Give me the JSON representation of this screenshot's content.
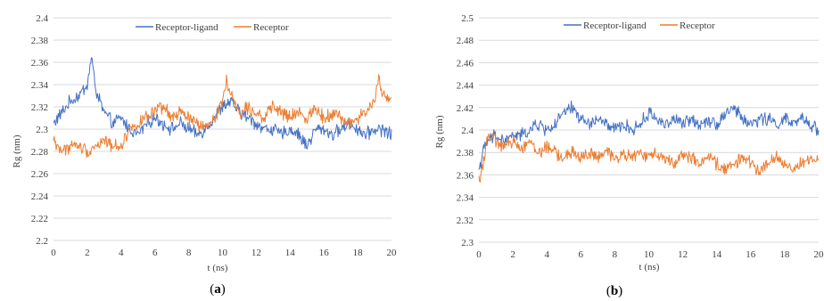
{
  "chart_data": [
    {
      "type": "line",
      "panel_label_open": "(",
      "panel_label_letter": "a",
      "panel_label_close": ")",
      "xlabel": "t (ns)",
      "ylabel": "Rg (nm)",
      "xlim": [
        0,
        20
      ],
      "ylim": [
        2.2,
        2.4
      ],
      "x_ticks": [
        "0",
        "2",
        "4",
        "6",
        "8",
        "10",
        "12",
        "14",
        "16",
        "18",
        "20"
      ],
      "y_ticks": [
        "2.2",
        "2.22",
        "2.24",
        "2.26",
        "2.28",
        "2.3",
        "2.32",
        "2.34",
        "2.36",
        "2.38",
        "2.4"
      ],
      "grid": "horizontal",
      "legend_position": "top-center",
      "series": [
        {
          "name": "Receptor-ligand",
          "color": "#4472C4",
          "x": [
            0,
            0.5,
            1,
            1.5,
            2,
            2.25,
            2.5,
            3,
            3.5,
            4,
            4.5,
            5,
            5.5,
            6,
            6.5,
            7,
            7.5,
            8,
            8.5,
            9,
            9.5,
            10,
            10.5,
            11,
            11.5,
            12,
            12.5,
            13,
            13.5,
            14,
            14.5,
            15,
            15.5,
            16,
            16.5,
            17,
            17.5,
            18,
            18.5,
            19,
            19.5,
            20
          ],
          "y": [
            2.305,
            2.315,
            2.325,
            2.33,
            2.34,
            2.365,
            2.335,
            2.315,
            2.305,
            2.31,
            2.3,
            2.295,
            2.305,
            2.31,
            2.305,
            2.3,
            2.305,
            2.3,
            2.295,
            2.3,
            2.31,
            2.32,
            2.325,
            2.315,
            2.31,
            2.305,
            2.3,
            2.3,
            2.295,
            2.3,
            2.295,
            2.285,
            2.3,
            2.3,
            2.295,
            2.3,
            2.305,
            2.3,
            2.295,
            2.3,
            2.3,
            2.295
          ]
        },
        {
          "name": "Receptor",
          "color": "#ED7D31",
          "x": [
            0,
            0.5,
            1,
            1.5,
            2,
            2.5,
            3,
            3.5,
            4,
            4.5,
            5,
            5.5,
            6,
            6.5,
            7,
            7.5,
            8,
            8.5,
            9,
            9.5,
            10,
            10.25,
            10.5,
            11,
            11.5,
            12,
            12.5,
            13,
            13.5,
            14,
            14.5,
            15,
            15.5,
            16,
            16.5,
            17,
            17.5,
            18,
            18.5,
            19,
            19.25,
            19.5,
            20
          ],
          "y": [
            2.29,
            2.28,
            2.285,
            2.285,
            2.28,
            2.285,
            2.29,
            2.285,
            2.285,
            2.3,
            2.305,
            2.31,
            2.315,
            2.32,
            2.31,
            2.315,
            2.31,
            2.305,
            2.3,
            2.31,
            2.325,
            2.345,
            2.33,
            2.315,
            2.32,
            2.315,
            2.31,
            2.32,
            2.315,
            2.31,
            2.315,
            2.31,
            2.32,
            2.31,
            2.315,
            2.31,
            2.305,
            2.31,
            2.315,
            2.325,
            2.345,
            2.33,
            2.325
          ]
        }
      ]
    },
    {
      "type": "line",
      "panel_label_open": "(",
      "panel_label_letter": "b",
      "panel_label_close": ")",
      "xlabel": "t (ns)",
      "ylabel": "Rg (nm)",
      "xlim": [
        0,
        20
      ],
      "ylim": [
        2.3,
        2.5
      ],
      "x_ticks": [
        "0",
        "2",
        "4",
        "6",
        "8",
        "10",
        "12",
        "14",
        "16",
        "18",
        "20"
      ],
      "y_ticks": [
        "2.3",
        "2.32",
        "2.34",
        "2.36",
        "2.38",
        "2.4",
        "2.42",
        "2.44",
        "2.46",
        "2.48",
        "2.5"
      ],
      "grid": "horizontal",
      "legend_position": "top-center",
      "series": [
        {
          "name": "Receptor-ligand",
          "color": "#4472C4",
          "x": [
            0,
            0.25,
            0.5,
            1,
            1.5,
            2,
            2.5,
            3,
            3.5,
            4,
            4.5,
            5,
            5.5,
            6,
            6.5,
            7,
            7.5,
            8,
            8.5,
            9,
            9.5,
            10,
            10.5,
            11,
            11.5,
            12,
            12.5,
            13,
            13.5,
            14,
            14.5,
            15,
            15.5,
            16,
            16.5,
            17,
            17.5,
            18,
            18.5,
            19,
            19.5,
            20
          ],
          "y": [
            2.365,
            2.38,
            2.39,
            2.395,
            2.39,
            2.395,
            2.395,
            2.4,
            2.405,
            2.4,
            2.405,
            2.415,
            2.42,
            2.41,
            2.405,
            2.41,
            2.405,
            2.4,
            2.405,
            2.4,
            2.405,
            2.415,
            2.41,
            2.405,
            2.41,
            2.405,
            2.41,
            2.405,
            2.41,
            2.405,
            2.415,
            2.42,
            2.41,
            2.405,
            2.41,
            2.41,
            2.405,
            2.41,
            2.405,
            2.41,
            2.405,
            2.4
          ]
        },
        {
          "name": "Receptor",
          "color": "#ED7D31",
          "x": [
            0,
            0.25,
            0.5,
            1,
            1.5,
            2,
            2.5,
            3,
            3.5,
            4,
            4.5,
            5,
            5.5,
            6,
            6.5,
            7,
            7.5,
            8,
            8.5,
            9,
            9.5,
            10,
            10.5,
            11,
            11.5,
            12,
            12.5,
            13,
            13.5,
            14,
            14.5,
            15,
            15.5,
            16,
            16.5,
            17,
            17.5,
            18,
            18.5,
            19,
            19.5,
            20
          ],
          "y": [
            2.355,
            2.37,
            2.395,
            2.39,
            2.385,
            2.39,
            2.385,
            2.39,
            2.38,
            2.385,
            2.38,
            2.375,
            2.38,
            2.375,
            2.38,
            2.375,
            2.38,
            2.375,
            2.38,
            2.375,
            2.38,
            2.375,
            2.38,
            2.375,
            2.37,
            2.38,
            2.375,
            2.37,
            2.375,
            2.37,
            2.365,
            2.37,
            2.375,
            2.37,
            2.365,
            2.37,
            2.375,
            2.37,
            2.365,
            2.37,
            2.375,
            2.37
          ]
        }
      ]
    }
  ]
}
